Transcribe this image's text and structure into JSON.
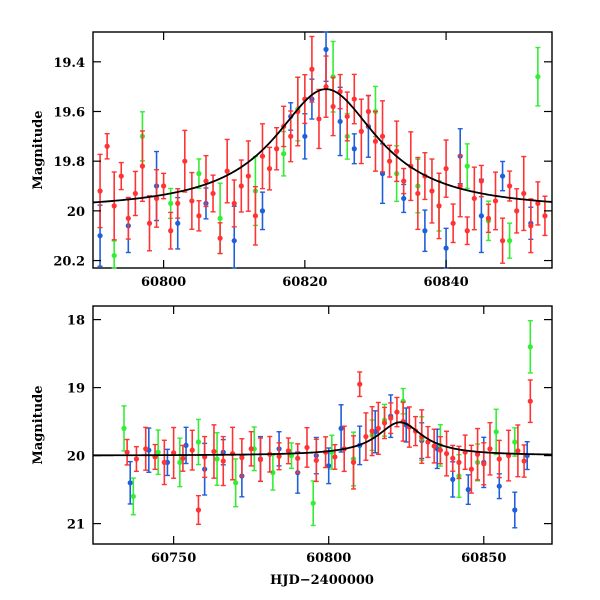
{
  "chart_data": [
    {
      "type": "scatter",
      "panel": "top",
      "xlim": [
        60790,
        60855
      ],
      "ylim": [
        20.23,
        19.28
      ],
      "y_inverted": true,
      "xticks": [
        60800,
        60820,
        60840
      ],
      "xtick_labels": [
        "60800",
        "60820",
        "60840"
      ],
      "yticks": [
        19.4,
        19.6,
        19.8,
        20.0,
        20.2
      ],
      "ytick_labels": [
        "19.4",
        "19.6",
        "19.8",
        "20",
        "20.2"
      ],
      "xlabel": "",
      "ylabel": "Magnitude",
      "model": {
        "type": "microlensing-fit",
        "baseline": 20.0,
        "peak_x": 60823,
        "peak_mag": 19.51,
        "width": 9
      },
      "series": [
        {
          "color": "#ff3333",
          "points": [
            [
              60791,
              19.92
            ],
            [
              60792,
              19.74
            ],
            [
              60793,
              19.98
            ],
            [
              60794,
              19.86
            ],
            [
              60795,
              20.03
            ],
            [
              60796,
              19.93
            ],
            [
              60797,
              19.82
            ],
            [
              60798,
              20.05
            ],
            [
              60799,
              19.95
            ],
            [
              60800,
              19.9
            ],
            [
              60801,
              20.08
            ],
            [
              60802,
              19.97
            ],
            [
              60803,
              19.8
            ],
            [
              60804,
              19.96
            ],
            [
              60805,
              20.02
            ],
            [
              60806,
              19.88
            ],
            [
              60807,
              19.93
            ],
            [
              60808,
              20.11
            ],
            [
              60809,
              19.84
            ],
            [
              60810,
              19.97
            ],
            [
              60811,
              19.9
            ],
            [
              60812,
              19.86
            ],
            [
              60813,
              20.02
            ],
            [
              60814,
              19.78
            ],
            [
              60815,
              19.83
            ],
            [
              60816,
              19.75
            ],
            [
              60817,
              19.66
            ],
            [
              60818,
              19.7
            ],
            [
              60819,
              19.6
            ],
            [
              60820,
              19.55
            ],
            [
              60821,
              19.43
            ],
            [
              60822,
              19.63
            ],
            [
              60823,
              19.5
            ],
            [
              60824,
              19.58
            ],
            [
              60825,
              19.52
            ],
            [
              60826,
              19.62
            ],
            [
              60827,
              19.55
            ],
            [
              60828,
              19.68
            ],
            [
              60829,
              19.6
            ],
            [
              60830,
              19.72
            ],
            [
              60831,
              19.7
            ],
            [
              60832,
              19.8
            ],
            [
              60833,
              19.76
            ],
            [
              60834,
              19.88
            ],
            [
              60835,
              19.82
            ],
            [
              60836,
              19.93
            ],
            [
              60837,
              19.86
            ],
            [
              60838,
              19.92
            ],
            [
              60839,
              19.98
            ],
            [
              60840,
              19.83
            ],
            [
              60841,
              20.05
            ],
            [
              60842,
              19.9
            ],
            [
              60843,
              20.08
            ],
            [
              60844,
              19.95
            ],
            [
              60845,
              19.88
            ],
            [
              60846,
              20.03
            ],
            [
              60847,
              19.96
            ],
            [
              60848,
              20.12
            ],
            [
              60849,
              19.9
            ],
            [
              60850,
              20.0
            ],
            [
              60851,
              19.93
            ],
            [
              60852,
              20.06
            ],
            [
              60853,
              19.97
            ],
            [
              60854,
              20.02
            ]
          ]
        },
        {
          "color": "#1f5fdb",
          "points": [
            [
              60791,
              20.1
            ],
            [
              60795,
              20.06
            ],
            [
              60799,
              19.9
            ],
            [
              60802,
              20.05
            ],
            [
              60806,
              19.97
            ],
            [
              60810,
              20.12
            ],
            [
              60814,
              20.0
            ],
            [
              60818,
              19.62
            ],
            [
              60820,
              19.7
            ],
            [
              60821,
              19.55
            ],
            [
              60823,
              19.35
            ],
            [
              60825,
              19.64
            ],
            [
              60827,
              19.75
            ],
            [
              60829,
              19.66
            ],
            [
              60831,
              19.85
            ],
            [
              60834,
              19.95
            ],
            [
              60837,
              20.08
            ],
            [
              60840,
              20.15
            ],
            [
              60842,
              19.78
            ],
            [
              60845,
              20.02
            ],
            [
              60848,
              19.86
            ],
            [
              60852,
              20.05
            ]
          ]
        },
        {
          "color": "#33ee33",
          "points": [
            [
              60793,
              20.18
            ],
            [
              60797,
              19.7
            ],
            [
              60801,
              19.97
            ],
            [
              60805,
              19.85
            ],
            [
              60808,
              20.03
            ],
            [
              60813,
              19.92
            ],
            [
              60817,
              19.77
            ],
            [
              60819,
              19.59
            ],
            [
              60824,
              19.46
            ],
            [
              60826,
              19.7
            ],
            [
              60830,
              19.6
            ],
            [
              60833,
              19.85
            ],
            [
              60836,
              19.9
            ],
            [
              60839,
              19.98
            ],
            [
              60843,
              19.82
            ],
            [
              60846,
              20.04
            ],
            [
              60849,
              20.12
            ],
            [
              60853,
              19.46
            ]
          ]
        }
      ]
    },
    {
      "type": "scatter",
      "panel": "bottom",
      "xlim": [
        60724,
        60872
      ],
      "ylim": [
        21.3,
        17.8
      ],
      "y_inverted": true,
      "xticks": [
        60750,
        60800,
        60850
      ],
      "xtick_labels": [
        "60750",
        "60800",
        "60850"
      ],
      "yticks": [
        18,
        19,
        20,
        21
      ],
      "ytick_labels": [
        "18",
        "19",
        "20",
        "21"
      ],
      "xlabel": "HJD−2400000",
      "ylabel": "Magnitude",
      "model": {
        "type": "microlensing-fit",
        "baseline": 20.0,
        "peak_x": 60823,
        "peak_mag": 19.51,
        "width": 9
      },
      "series": [
        {
          "color": "#ff3333",
          "points": [
            [
              60735,
              19.95
            ],
            [
              60738,
              20.05
            ],
            [
              60741,
              19.9
            ],
            [
              60744,
              20.02
            ],
            [
              60747,
              20.1
            ],
            [
              60750,
              19.96
            ],
            [
              60753,
              20.04
            ],
            [
              60756,
              19.92
            ],
            [
              60758,
              20.8
            ],
            [
              60760,
              20.02
            ],
            [
              60763,
              19.94
            ],
            [
              60766,
              20.08
            ],
            [
              60769,
              19.97
            ],
            [
              60772,
              20.03
            ],
            [
              60775,
              19.9
            ],
            [
              60778,
              20.06
            ],
            [
              60781,
              19.98
            ],
            [
              60784,
              20.01
            ],
            [
              60787,
              19.93
            ],
            [
              60790,
              20.04
            ],
            [
              60793,
              19.88
            ],
            [
              60796,
              20.07
            ],
            [
              60799,
              19.95
            ],
            [
              60802,
              20.02
            ],
            [
              60805,
              19.9
            ],
            [
              60808,
              20.1
            ],
            [
              60810,
              18.95
            ],
            [
              60812,
              19.72
            ],
            [
              60814,
              19.64
            ],
            [
              60816,
              19.6
            ],
            [
              60818,
              19.52
            ],
            [
              60820,
              19.45
            ],
            [
              60822,
              19.36
            ],
            [
              60824,
              19.5
            ],
            [
              60826,
              19.58
            ],
            [
              60828,
              19.64
            ],
            [
              60830,
              19.72
            ],
            [
              60832,
              19.8
            ],
            [
              60834,
              19.86
            ],
            [
              60836,
              19.92
            ],
            [
              60838,
              19.97
            ],
            [
              60840,
              20.04
            ],
            [
              60842,
              20.1
            ],
            [
              60844,
              19.95
            ],
            [
              60846,
              20.2
            ],
            [
              60848,
              19.98
            ],
            [
              60850,
              20.12
            ],
            [
              60852,
              19.9
            ],
            [
              60855,
              20.05
            ],
            [
              60858,
              20.0
            ],
            [
              60861,
              19.93
            ],
            [
              60863,
              20.08
            ],
            [
              60865,
              19.2
            ]
          ]
        },
        {
          "color": "#1f5fdb",
          "points": [
            [
              60736,
              20.4
            ],
            [
              60742,
              19.92
            ],
            [
              60748,
              20.1
            ],
            [
              60754,
              19.85
            ],
            [
              60760,
              20.2
            ],
            [
              60766,
              19.95
            ],
            [
              60772,
              20.3
            ],
            [
              60778,
              20.05
            ],
            [
              60784,
              19.9
            ],
            [
              60790,
              20.25
            ],
            [
              60796,
              20.0
            ],
            [
              60800,
              20.15
            ],
            [
              60804,
              19.6
            ],
            [
              60810,
              19.85
            ],
            [
              60815,
              19.65
            ],
            [
              60820,
              19.42
            ],
            [
              60825,
              19.55
            ],
            [
              60830,
              19.78
            ],
            [
              60835,
              19.9
            ],
            [
              60840,
              20.35
            ],
            [
              60845,
              20.5
            ],
            [
              60850,
              20.1
            ],
            [
              60855,
              20.45
            ],
            [
              60860,
              20.8
            ],
            [
              60864,
              20.0
            ]
          ]
        },
        {
          "color": "#33ee33",
          "points": [
            [
              60734,
              19.6
            ],
            [
              60737,
              20.6
            ],
            [
              60745,
              19.95
            ],
            [
              60752,
              20.1
            ],
            [
              60758,
              19.8
            ],
            [
              60764,
              20.05
            ],
            [
              60770,
              20.4
            ],
            [
              60776,
              19.9
            ],
            [
              60782,
              20.25
            ],
            [
              60788,
              20.0
            ],
            [
              60795,
              20.7
            ],
            [
              60801,
              19.95
            ],
            [
              60808,
              20.05
            ],
            [
              60814,
              19.7
            ],
            [
              60818,
              19.48
            ],
            [
              60824,
              19.2
            ],
            [
              60830,
              19.75
            ],
            [
              60836,
              19.85
            ],
            [
              60842,
              20.3
            ],
            [
              60848,
              20.1
            ],
            [
              60854,
              19.65
            ],
            [
              60860,
              19.8
            ],
            [
              60865,
              18.4
            ]
          ]
        }
      ]
    }
  ]
}
